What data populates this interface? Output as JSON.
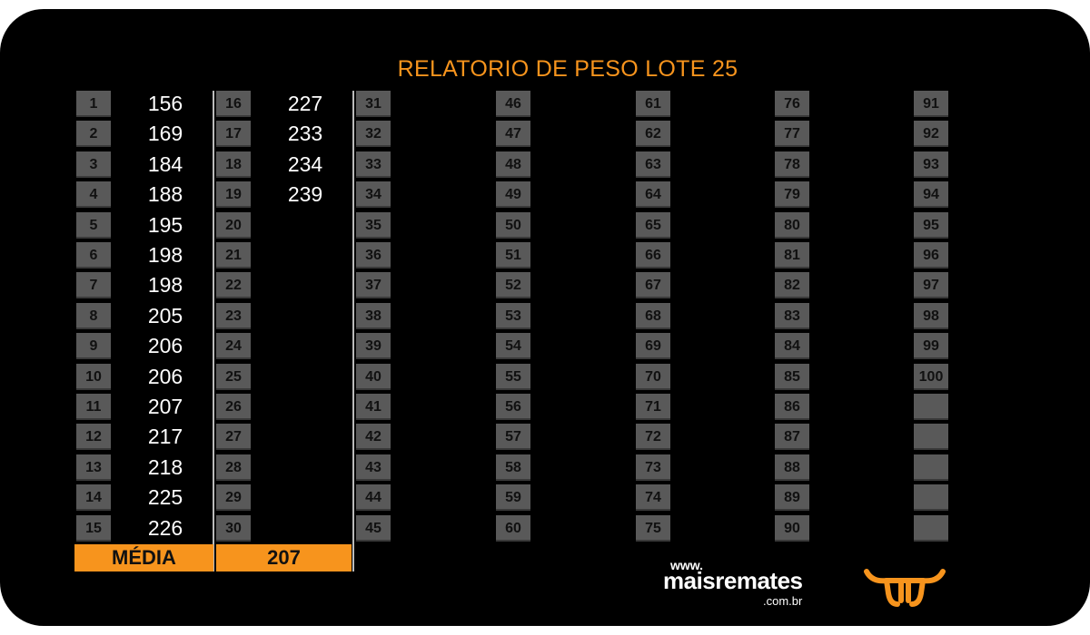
{
  "title": "RELATORIO DE PESO LOTE 25",
  "columns": [
    {
      "numbers": [
        "1",
        "2",
        "3",
        "4",
        "5",
        "6",
        "7",
        "8",
        "9",
        "10",
        "11",
        "12",
        "13",
        "14",
        "15"
      ],
      "weights": [
        "156",
        "169",
        "184",
        "188",
        "195",
        "198",
        "198",
        "205",
        "206",
        "206",
        "207",
        "217",
        "218",
        "225",
        "226"
      ]
    },
    {
      "numbers": [
        "16",
        "17",
        "18",
        "19",
        "20",
        "21",
        "22",
        "23",
        "24",
        "25",
        "26",
        "27",
        "28",
        "29",
        "30"
      ],
      "weights": [
        "227",
        "233",
        "234",
        "239",
        "",
        "",
        "",
        "",
        "",
        "",
        "",
        "",
        "",
        "",
        ""
      ]
    },
    {
      "numbers": [
        "31",
        "32",
        "33",
        "34",
        "35",
        "36",
        "37",
        "38",
        "39",
        "40",
        "41",
        "42",
        "43",
        "44",
        "45"
      ],
      "weights": []
    },
    {
      "numbers": [
        "46",
        "47",
        "48",
        "49",
        "50",
        "51",
        "52",
        "53",
        "54",
        "55",
        "56",
        "57",
        "58",
        "59",
        "60"
      ],
      "weights": []
    },
    {
      "numbers": [
        "61",
        "62",
        "63",
        "64",
        "65",
        "66",
        "67",
        "68",
        "69",
        "70",
        "71",
        "72",
        "73",
        "74",
        "75"
      ],
      "weights": []
    },
    {
      "numbers": [
        "76",
        "77",
        "78",
        "79",
        "80",
        "81",
        "82",
        "83",
        "84",
        "85",
        "86",
        "87",
        "88",
        "89",
        "90"
      ],
      "weights": []
    },
    {
      "numbers": [
        "91",
        "92",
        "93",
        "94",
        "95",
        "96",
        "97",
        "98",
        "99",
        "100",
        "",
        "",
        "",
        "",
        ""
      ],
      "weights": []
    }
  ],
  "average": {
    "label": "MÉDIA",
    "value": "207"
  },
  "logo": {
    "www": "www.",
    "name": "maisremates",
    "domain": ".com.br",
    "icon": "bull-head-icon"
  },
  "colors": {
    "accent": "#f7941d",
    "cell": "#595959",
    "background": "#000000"
  }
}
